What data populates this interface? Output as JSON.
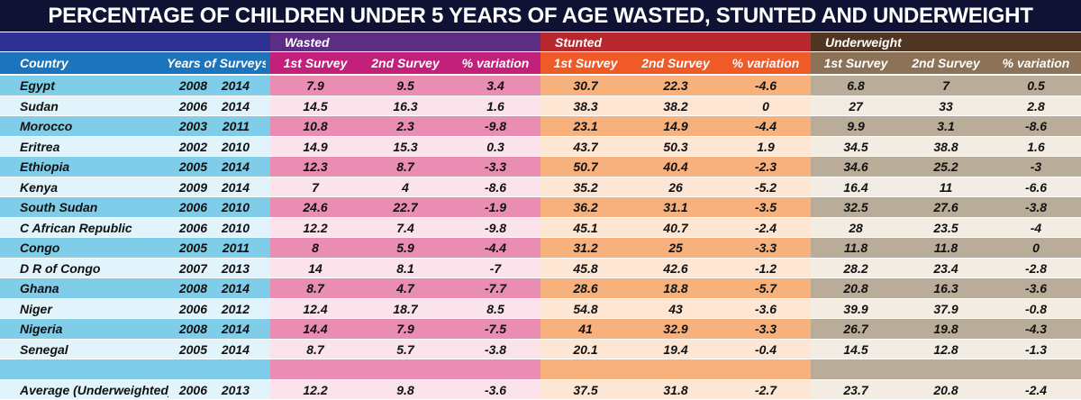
{
  "title": "PERCENTAGE OF CHILDREN UNDER 5 YEARS OF AGE WASTED, STUNTED AND UNDERWEIGHT",
  "table": {
    "columns": [
      "Country",
      "Years of Surveys"
    ],
    "groups": [
      {
        "name": "Wasted",
        "columns": [
          "1st Survey",
          "2nd Survey",
          "% variation"
        ]
      },
      {
        "name": "Stunted",
        "columns": [
          "1st Survey",
          "2nd Survey",
          "% variation"
        ]
      },
      {
        "name": "Underweight",
        "columns": [
          "1st Survey",
          "2nd Survey",
          "% variation"
        ]
      }
    ],
    "rows": [
      {
        "country": "Egypt",
        "years": [
          2008,
          2014
        ],
        "values": [
          7.9,
          9.5,
          3.4,
          30.7,
          22.3,
          -4.6,
          6.8,
          7,
          0.5
        ]
      },
      {
        "country": "Sudan",
        "years": [
          2006,
          2014
        ],
        "values": [
          14.5,
          16.3,
          1.6,
          38.3,
          38.2,
          0,
          27,
          33,
          2.8
        ]
      },
      {
        "country": "Morocco",
        "years": [
          2003,
          2011
        ],
        "values": [
          10.8,
          2.3,
          -9.8,
          23.1,
          14.9,
          -4.4,
          9.9,
          3.1,
          -8.6
        ]
      },
      {
        "country": "Eritrea",
        "years": [
          2002,
          2010
        ],
        "values": [
          14.9,
          15.3,
          0.3,
          43.7,
          50.3,
          1.9,
          34.5,
          38.8,
          1.6
        ]
      },
      {
        "country": "Ethiopia",
        "years": [
          2005,
          2014
        ],
        "values": [
          12.3,
          8.7,
          -3.3,
          50.7,
          40.4,
          -2.3,
          34.6,
          25.2,
          -3
        ]
      },
      {
        "country": "Kenya",
        "years": [
          2009,
          2014
        ],
        "values": [
          7,
          4,
          -8.6,
          35.2,
          26,
          -5.2,
          16.4,
          11,
          -6.6
        ]
      },
      {
        "country": "South Sudan",
        "years": [
          2006,
          2010
        ],
        "values": [
          24.6,
          22.7,
          -1.9,
          36.2,
          31.1,
          -3.5,
          32.5,
          27.6,
          -3.8
        ]
      },
      {
        "country": "C African Republic",
        "years": [
          2006,
          2010
        ],
        "values": [
          12.2,
          7.4,
          -9.8,
          45.1,
          40.7,
          -2.4,
          28,
          23.5,
          -4
        ]
      },
      {
        "country": "Congo",
        "years": [
          2005,
          2011
        ],
        "values": [
          8,
          5.9,
          -4.4,
          31.2,
          25,
          -3.3,
          11.8,
          11.8,
          0
        ]
      },
      {
        "country": "D R of Congo",
        "years": [
          2007,
          2013
        ],
        "values": [
          14,
          8.1,
          -7,
          45.8,
          42.6,
          -1.2,
          28.2,
          23.4,
          -2.8
        ]
      },
      {
        "country": "Ghana",
        "years": [
          2008,
          2014
        ],
        "values": [
          8.7,
          4.7,
          -7.7,
          28.6,
          18.8,
          -5.7,
          20.8,
          16.3,
          -3.6
        ]
      },
      {
        "country": "Niger",
        "years": [
          2006,
          2012
        ],
        "values": [
          12.4,
          18.7,
          8.5,
          54.8,
          43,
          -3.6,
          39.9,
          37.9,
          -0.8
        ]
      },
      {
        "country": "Nigeria",
        "years": [
          2008,
          2014
        ],
        "values": [
          14.4,
          7.9,
          -7.5,
          41,
          32.9,
          -3.3,
          26.7,
          19.8,
          -4.3
        ]
      },
      {
        "country": "Senegal",
        "years": [
          2005,
          2014
        ],
        "values": [
          8.7,
          5.7,
          -3.8,
          20.1,
          19.4,
          -0.4,
          14.5,
          12.8,
          -1.3
        ]
      }
    ],
    "average": {
      "country": "Average (Underweighted)",
      "years": [
        2006,
        2013
      ],
      "values": [
        12.2,
        9.8,
        -3.6,
        37.5,
        31.8,
        -2.7,
        23.7,
        20.8,
        -2.4
      ]
    }
  }
}
